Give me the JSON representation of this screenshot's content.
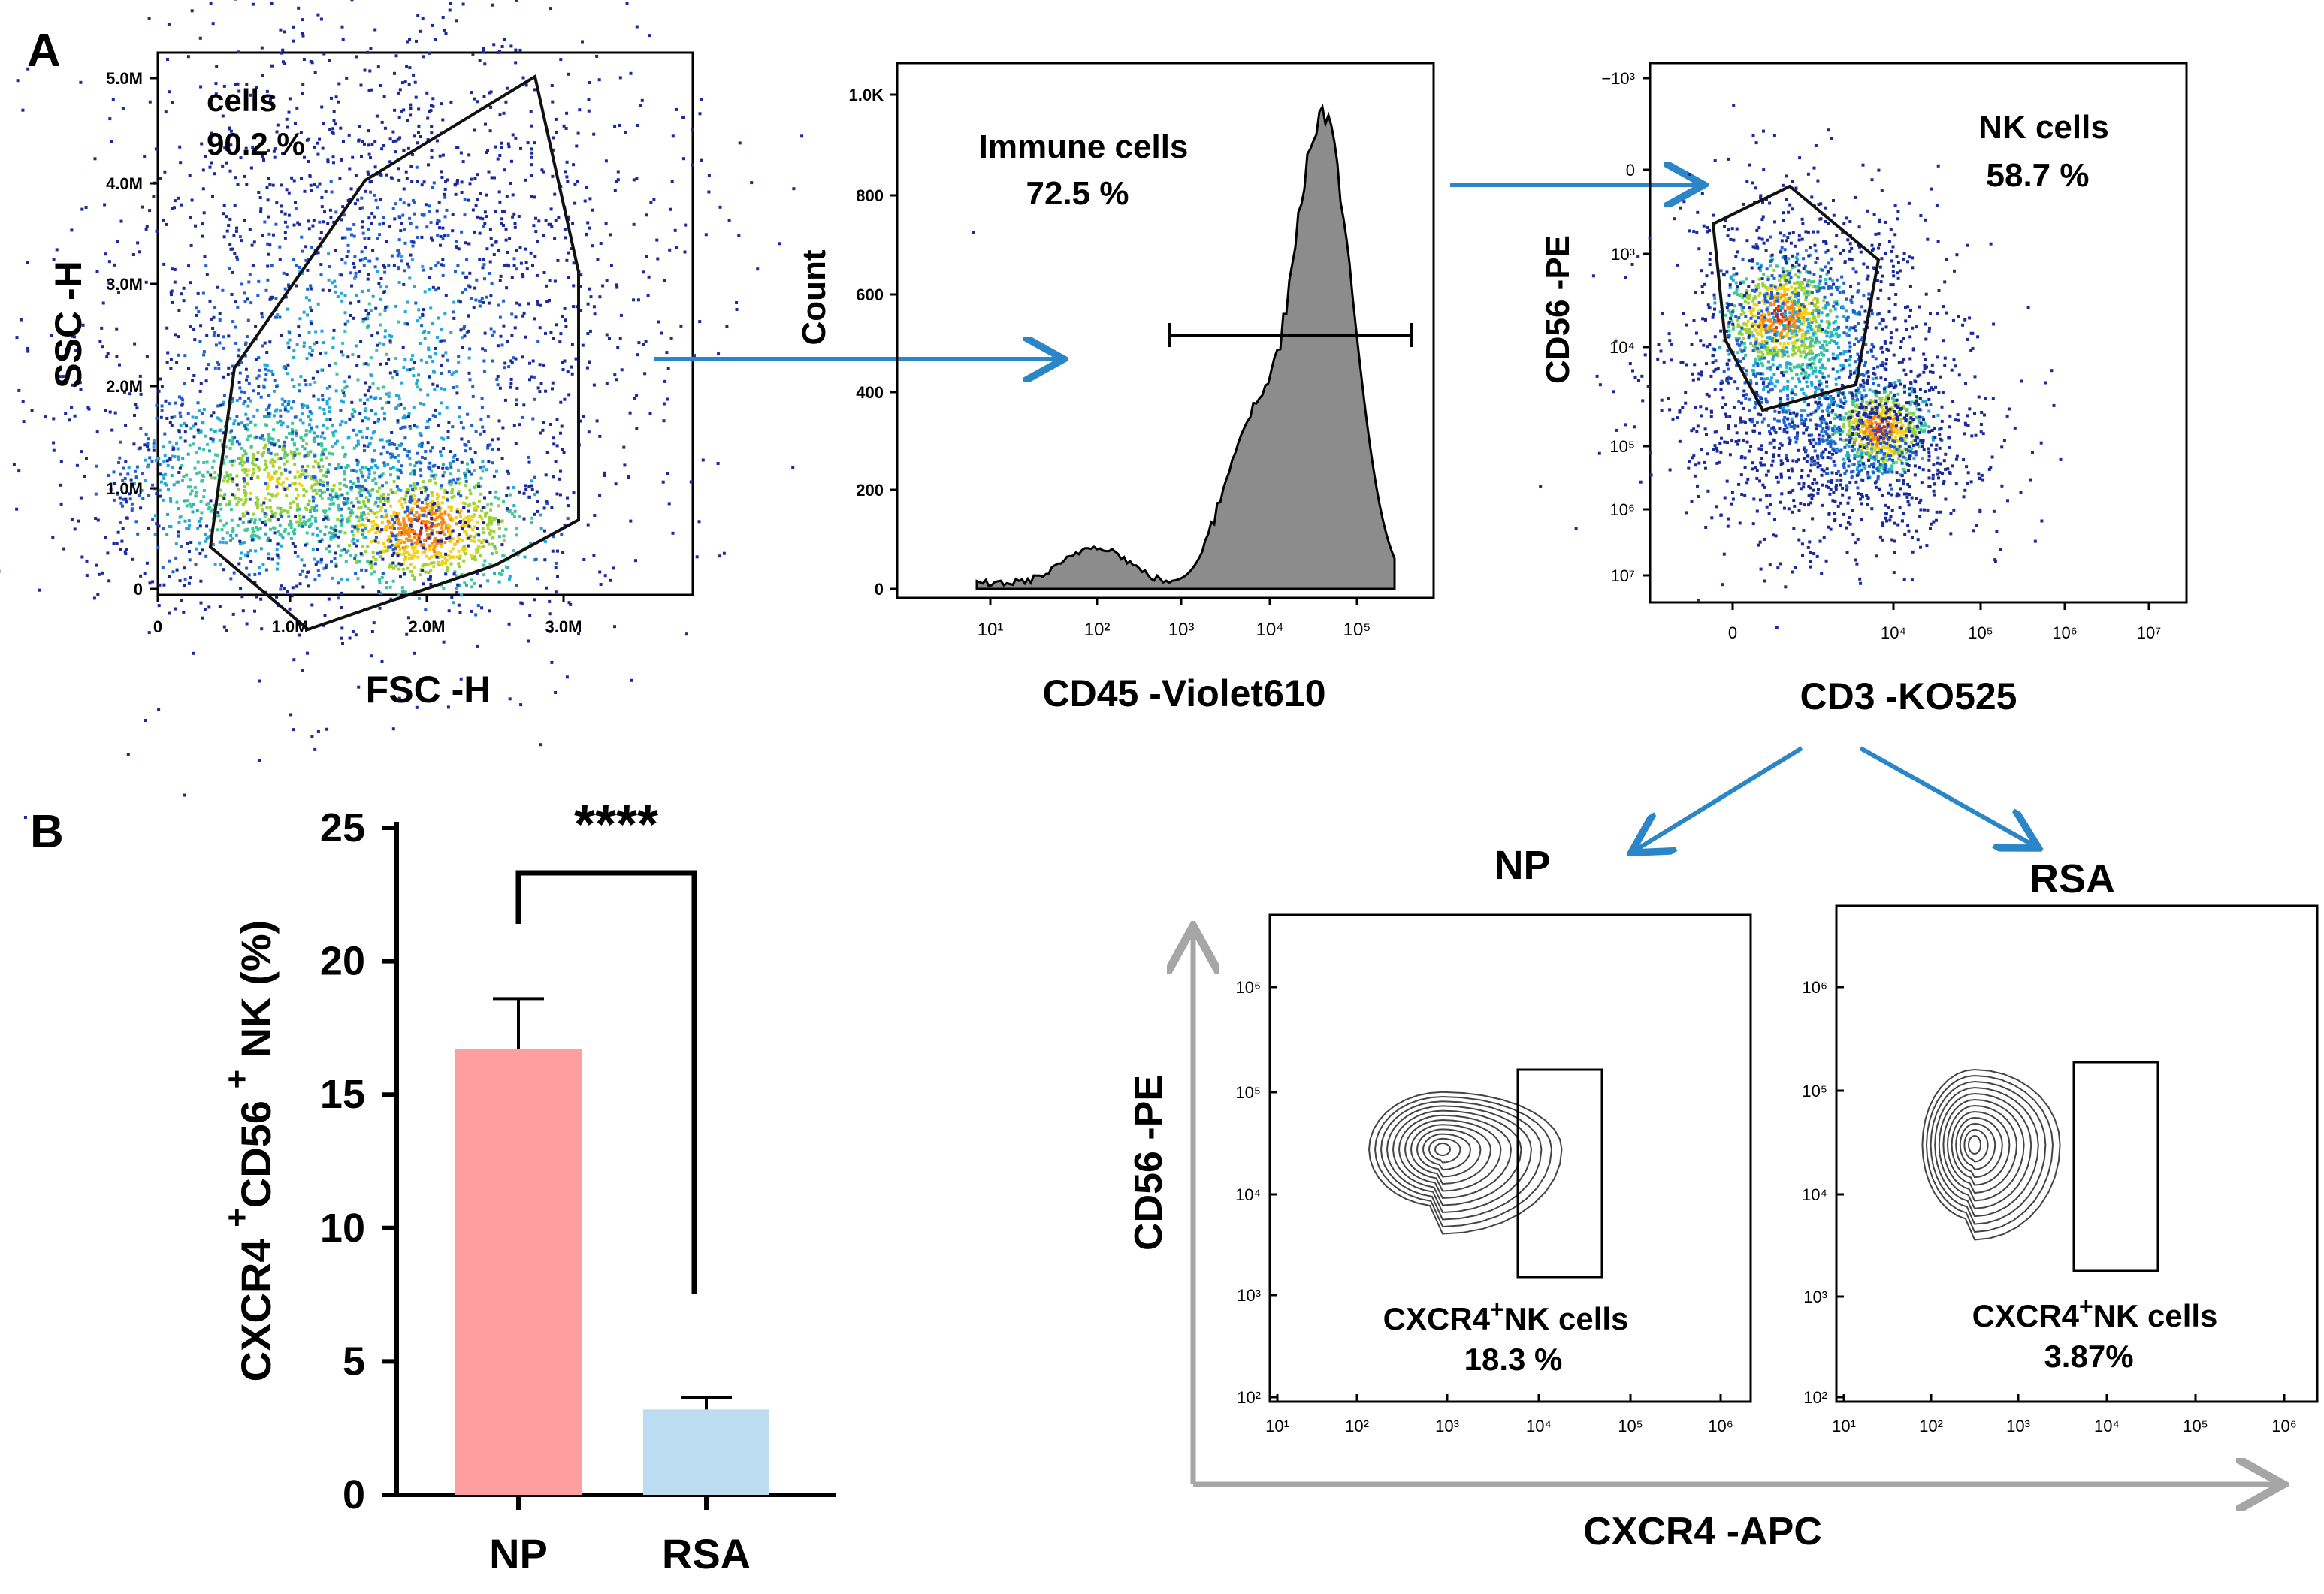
{
  "colors": {
    "arrow": "#2b86c8",
    "np_bar": "#ff9e9e",
    "rsa_bar": "#bcdcf2",
    "hist_fill": "#8c8c8c",
    "gray_axis": "#a6a6a6",
    "density": [
      "#1a2a9a",
      "#1f5fd0",
      "#22a8d8",
      "#3fc69a",
      "#9ad23a",
      "#f2d21a",
      "#f58a14",
      "#e02010"
    ]
  },
  "panel_labels": {
    "a": "A",
    "b": "B"
  },
  "scatter1": {
    "xlabel": "FSC -H",
    "ylabel": "SSC -H",
    "x_ticks": [
      "0",
      "1.0M",
      "2.0M",
      "3.0M"
    ],
    "y_ticks": [
      "0",
      "1.0M",
      "2.0M",
      "3.0M",
      "4.0M",
      "5.0M"
    ],
    "gate_name": "cells",
    "gate_pct": "90.2 %"
  },
  "histogram": {
    "xlabel": "CD45 -Violet610",
    "ylabel": "Count",
    "x_ticks": [
      "10¹",
      "10²",
      "10³",
      "10⁴",
      "10⁵"
    ],
    "y_ticks": [
      "0",
      "200",
      "400",
      "600",
      "800",
      "1.0K"
    ],
    "gate_name": "Immune cells",
    "gate_pct": "72.5 %"
  },
  "scatter2": {
    "xlabel": "CD3 -KO525",
    "ylabel": "CD56 -PE",
    "x_ticks": [
      "0",
      "10⁴",
      "10⁵",
      "10⁶",
      "10⁷"
    ],
    "y_ticks": [
      "−10³",
      "0",
      "10³",
      "10⁴",
      "10⁵",
      "10⁶",
      "10⁷"
    ],
    "gate_name": "NK cells",
    "gate_pct": "58.7 %"
  },
  "contours": {
    "xlabel": "CXCR4 -APC",
    "ylabel": "CD56 -PE",
    "ticks": [
      "10¹",
      "10²",
      "10³",
      "10⁴",
      "10⁵",
      "10⁶"
    ],
    "y_ticks": [
      "10²",
      "10³",
      "10⁴",
      "10⁵",
      "10⁶"
    ],
    "np": {
      "title": "NP",
      "gate_name_a": "CXCR4",
      "gate_name_b": "NK cells",
      "gate_pct": "18.3 %"
    },
    "rsa": {
      "title": "RSA",
      "gate_name_a": "CXCR4",
      "gate_name_b": "NK cells",
      "gate_pct": "3.87%"
    },
    "sup": "+"
  },
  "chart_data": {
    "type": "bar",
    "categories": [
      "NP",
      "RSA"
    ],
    "values": [
      16.7,
      3.2
    ],
    "errors": [
      1.9,
      0.45
    ],
    "ylabel_parts": [
      "CXCR4 ",
      "+",
      "CD56 ",
      "+",
      " NK (%)"
    ],
    "y_ticks": [
      "0",
      "5",
      "10",
      "15",
      "20",
      "25"
    ],
    "ylim": [
      0,
      25
    ],
    "significance": "****"
  }
}
